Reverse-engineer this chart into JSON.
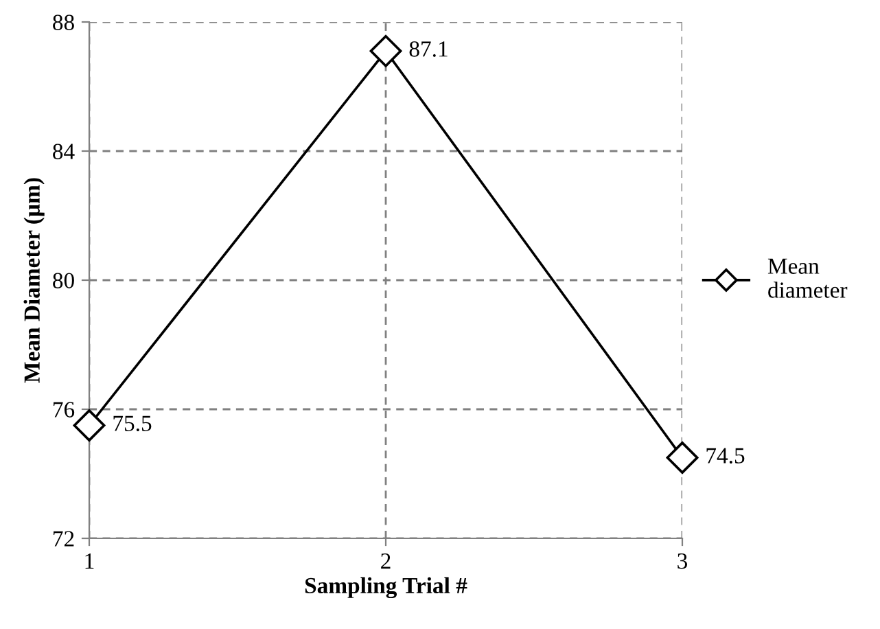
{
  "chart_data": {
    "type": "line",
    "xlabel": "Sampling Trial #",
    "ylabel": "Mean Diameter (µm)",
    "x": [
      1,
      2,
      3
    ],
    "series": [
      {
        "name": "Mean\ndiameter",
        "color": "#000000",
        "values": [
          75.5,
          87.1,
          74.5
        ]
      }
    ],
    "xlim": [
      1,
      3
    ],
    "xticks": [
      1,
      2,
      3
    ],
    "ylim": [
      72,
      88
    ],
    "yticks": [
      72,
      76,
      80,
      84,
      88
    ],
    "grid": true,
    "legend": "right",
    "marker": "diamond",
    "line_style": "solid",
    "data_labels": true
  }
}
